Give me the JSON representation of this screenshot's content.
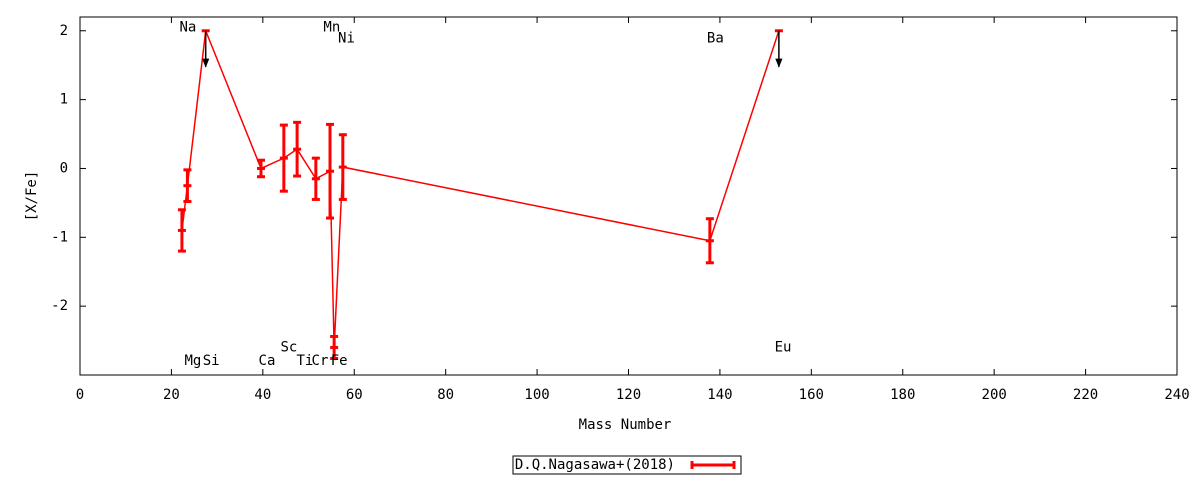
{
  "chart_data": {
    "type": "errorbar_line",
    "x_label": "Mass Number",
    "y_label": "[X/Fe]",
    "xlim": [
      0,
      240
    ],
    "xticks": [
      0,
      20,
      40,
      60,
      80,
      100,
      120,
      140,
      160,
      180,
      200,
      220,
      240
    ],
    "ylim": [
      -3,
      2.2
    ],
    "yticks": [
      -2,
      -1,
      0,
      1,
      2
    ],
    "legend": "bottom",
    "series": [
      {
        "name": "D.Q.Nagasawa+(2018)",
        "color": "#ff0000",
        "x": [
          22.3,
          23.5,
          27.5,
          39.6,
          44.6,
          47.5,
          51.6,
          54.7,
          55.6,
          57.5,
          137.8,
          152.9
        ],
        "values": [
          -0.9,
          -0.25,
          2,
          0,
          0.15,
          0.28,
          -0.15,
          -0.04,
          -2.6,
          0.02,
          -1.05,
          2
        ],
        "errors": [
          0.3,
          0.23,
          null,
          0.12,
          0.48,
          0.39,
          0.3,
          0.68,
          0.16,
          0.47,
          0.32,
          null
        ],
        "upper_limits": [
          false,
          false,
          true,
          false,
          false,
          false,
          false,
          false,
          false,
          false,
          false,
          true
        ]
      }
    ],
    "annotations": [
      {
        "text": "Na",
        "x": 23.6,
        "y": 2.05
      },
      {
        "text": "Mn",
        "x": 55.1,
        "y": 2.05
      },
      {
        "text": "Ni",
        "x": 58.3,
        "y": 1.89
      },
      {
        "text": "Ba",
        "x": 139,
        "y": 1.89
      },
      {
        "text": "Sc",
        "x": 45.7,
        "y": -2.6
      },
      {
        "text": "Eu",
        "x": 153.8,
        "y": -2.6
      },
      {
        "text": "Mg",
        "x": 24.7,
        "y": -2.8
      },
      {
        "text": "Si",
        "x": 28.7,
        "y": -2.8
      },
      {
        "text": "Ca",
        "x": 40.9,
        "y": -2.8
      },
      {
        "text": "Ti",
        "x": 49.2,
        "y": -2.8
      },
      {
        "text": "Cr",
        "x": 52.5,
        "y": -2.8
      },
      {
        "text": "Fe",
        "x": 56.7,
        "y": -2.8
      }
    ]
  }
}
